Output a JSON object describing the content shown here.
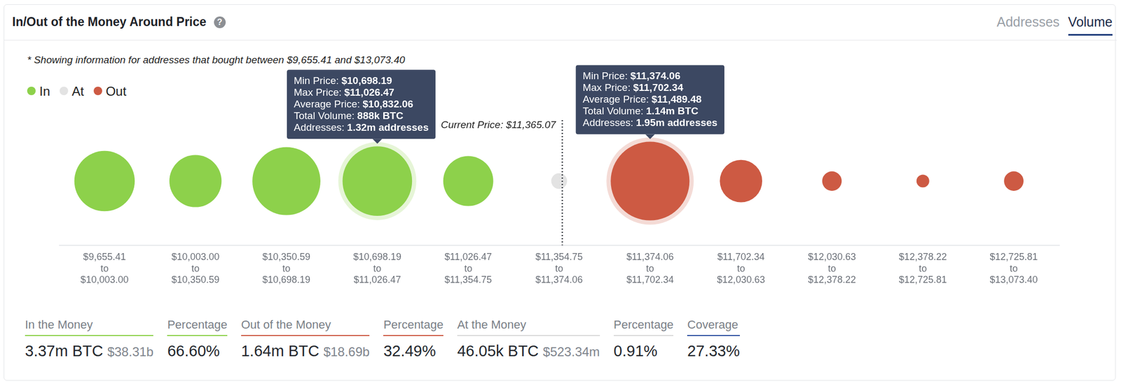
{
  "header": {
    "title": "In/Out of the Money Around Price",
    "help_icon": "?",
    "tabs": [
      "Addresses",
      "Volume"
    ],
    "active_tab": "Volume"
  },
  "note": "* Showing information for addresses that bought between $9,655.41 and $13,073.40",
  "chart_data": {
    "type": "bubble",
    "categories": [
      "$9,655.41\nto\n$10,003.00",
      "$10,003.00\nto\n$10,350.59",
      "$10,350.59\nto\n$10,698.19",
      "$10,698.19\nto\n$11,026.47",
      "$11,026.47\nto\n$11,354.75",
      "$11,354.75\nto\n$11,374.06",
      "$11,374.06\nto\n$11,702.34",
      "$11,702.34\nto\n$12,030.63",
      "$12,030.63\nto\n$12,378.22",
      "$12,378.22\nto\n$12,725.81",
      "$12,725.81\nto\n$13,073.40"
    ],
    "bins": [
      9655.41,
      10003.0,
      10350.59,
      10698.19,
      11026.47,
      11354.75,
      11374.06,
      11702.34,
      12030.63,
      12378.22,
      12725.81,
      13073.4
    ],
    "series": [
      {
        "name": "In",
        "color": "#8dd14b",
        "values": [
          670000,
          500000,
          850000,
          888000,
          460000,
          null,
          null,
          null,
          null,
          null,
          null
        ]
      },
      {
        "name": "At",
        "color": "#e3e3e3",
        "values": [
          null,
          null,
          null,
          null,
          null,
          46050,
          null,
          null,
          null,
          null,
          null
        ]
      },
      {
        "name": "Out",
        "color": "#cd5a43",
        "values": [
          null,
          null,
          null,
          null,
          null,
          null,
          1140000,
          330000,
          70000,
          30000,
          70000
        ]
      }
    ],
    "legend": "top",
    "grid": false,
    "tick_labels": "x",
    "current_price": {
      "label": "Current Price: $11,365.07",
      "value": 11365.07
    },
    "tooltips": [
      {
        "category": "$10,698.19\nto\n$11,026.47",
        "lines": [
          {
            "label": "Min Price:",
            "value": "$10,698.19"
          },
          {
            "label": "Max Price:",
            "value": "$11,026.47"
          },
          {
            "label": "Average Price:",
            "value": "$10,832.06"
          },
          {
            "label": "Total Volume:",
            "value": "888k BTC"
          },
          {
            "label": "Addresses:",
            "value": "1.32m addresses"
          }
        ]
      },
      {
        "category": "$11,374.06\nto\n$11,702.34",
        "lines": [
          {
            "label": "Min Price:",
            "value": "$11,374.06"
          },
          {
            "label": "Max Price:",
            "value": "$11,702.34"
          },
          {
            "label": "Average Price:",
            "value": "$11,489.48"
          },
          {
            "label": "Total Volume:",
            "value": "1.14m BTC"
          },
          {
            "label": "Addresses:",
            "value": "1.95m addresses"
          }
        ]
      }
    ]
  },
  "summary": [
    {
      "label": "In the Money",
      "value": "3.37m BTC",
      "secondary": "$38.31b",
      "color": "#8dd14b"
    },
    {
      "label": "Percentage",
      "value": "66.60%",
      "color": "#8dd14b"
    },
    {
      "label": "Out of the Money",
      "value": "1.64m BTC",
      "secondary": "$18.69b",
      "color": "#cd5a43"
    },
    {
      "label": "Percentage",
      "value": "32.49%",
      "color": "#cd5a43"
    },
    {
      "label": "At the Money",
      "value": "46.05k BTC",
      "secondary": "$523.34m",
      "color": "#d9d9d9"
    },
    {
      "label": "Percentage",
      "value": "0.91%",
      "color": "#d9d9d9"
    },
    {
      "label": "Coverage",
      "value": "27.33%",
      "color": "#2d4fa0"
    }
  ]
}
